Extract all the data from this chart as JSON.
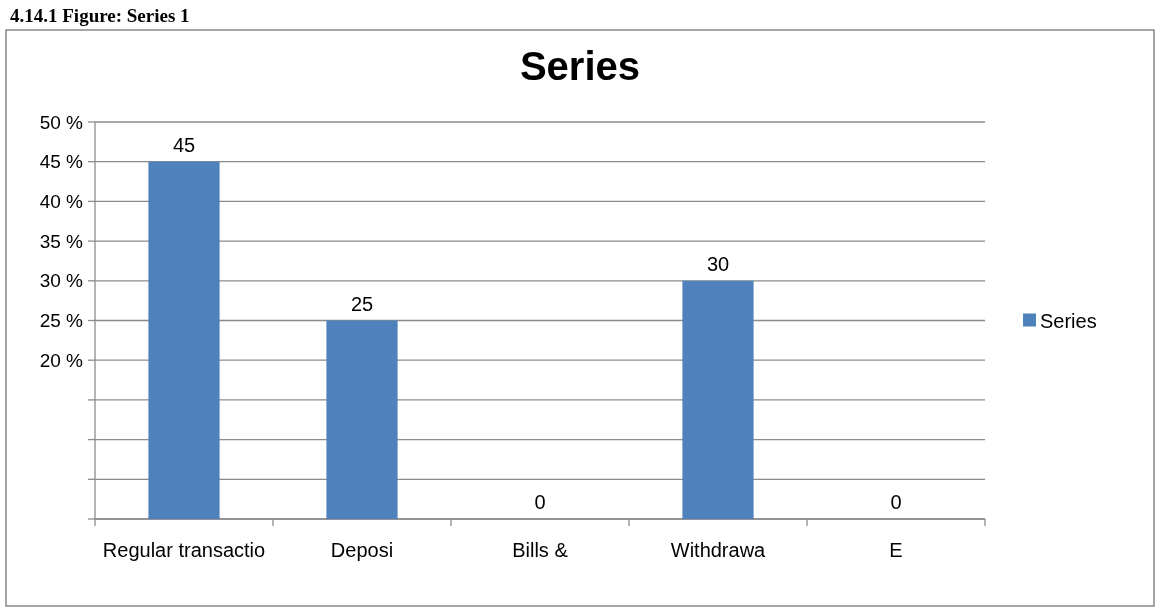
{
  "chart_data": {
    "type": "bar",
    "title": "Series",
    "annotations": [
      "4.14.1 Figure: Series 1"
    ],
    "categories": [
      "Regular transactio",
      "Deposi",
      "Bills &",
      "Withdrawa",
      "E"
    ],
    "series": [
      {
        "name": "Series",
        "color": "#4f81bd",
        "values": [
          45,
          25,
          0,
          30,
          0
        ]
      }
    ],
    "ylim": [
      0,
      50
    ],
    "yticks": [
      {
        "value": 0,
        "label": null
      },
      {
        "value": 5,
        "label": null
      },
      {
        "value": 10,
        "label": null
      },
      {
        "value": 15,
        "label": null
      },
      {
        "value": 20,
        "label": "20 %"
      },
      {
        "value": 25,
        "label": "25 %"
      },
      {
        "value": 30,
        "label": "30 %"
      },
      {
        "value": 35,
        "label": "35 %"
      },
      {
        "value": 40,
        "label": "40 %"
      },
      {
        "value": 45,
        "label": "45 %"
      },
      {
        "value": 50,
        "label": "50 %"
      }
    ],
    "grid": "y",
    "legend": "right",
    "data_labels": true
  }
}
